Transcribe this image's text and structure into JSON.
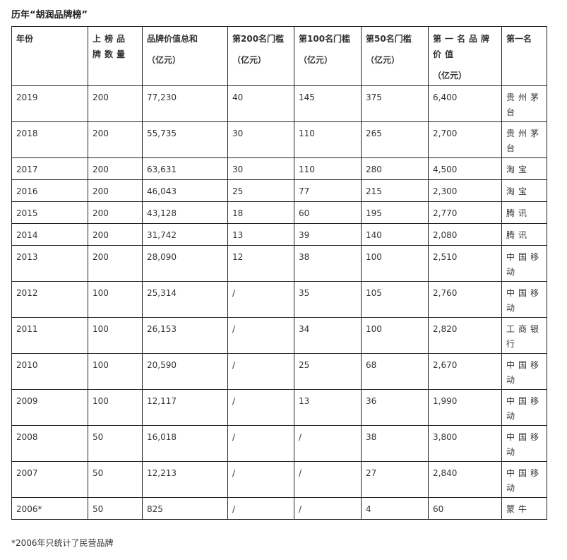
{
  "title": "历年“胡润品牌榜”",
  "headers": [
    {
      "label": "年份",
      "unit": ""
    },
    {
      "label": "上榜品牌数量",
      "unit": ""
    },
    {
      "label": "品牌价值总和",
      "unit": "（亿元）"
    },
    {
      "label": "第200名门槛",
      "unit": "（亿元）"
    },
    {
      "label": "第100名门槛",
      "unit": "（亿元）"
    },
    {
      "label": "第50名门槛",
      "unit": "（亿元）"
    },
    {
      "label": "第一名品牌价值",
      "unit": "（亿元）"
    },
    {
      "label": "第一名",
      "unit": ""
    }
  ],
  "rows": [
    [
      "2019",
      "200",
      "77,230",
      "40",
      "145",
      "375",
      "6,400",
      "贵州茅台"
    ],
    [
      "2018",
      "200",
      "55,735",
      "30",
      "110",
      "265",
      "2,700",
      "贵州茅台"
    ],
    [
      "2017",
      "200",
      "63,631",
      "30",
      "110",
      "280",
      "4,500",
      "淘宝"
    ],
    [
      "2016",
      "200",
      "46,043",
      "25",
      "77",
      "215",
      "2,300",
      "淘宝"
    ],
    [
      "2015",
      "200",
      "43,128",
      "18",
      "60",
      "195",
      "2,770",
      "腾讯"
    ],
    [
      "2014",
      "200",
      "31,742",
      "13",
      "39",
      "140",
      "2,080",
      "腾讯"
    ],
    [
      "2013",
      "200",
      "28,090",
      "12",
      "38",
      "100",
      "2,510",
      "中国移动"
    ],
    [
      "2012",
      "100",
      "25,314",
      "/",
      "35",
      "105",
      "2,760",
      "中国移动"
    ],
    [
      "2011",
      "100",
      "26,153",
      "/",
      "34",
      "100",
      "2,820",
      "工商银行"
    ],
    [
      "2010",
      "100",
      "20,590",
      "/",
      "25",
      "68",
      "2,670",
      "中国移动"
    ],
    [
      "2009",
      "100",
      "12,117",
      "/",
      "13",
      "36",
      "1,990",
      "中国移动"
    ],
    [
      "2008",
      "50",
      "16,018",
      "/",
      "/",
      "38",
      "3,800",
      "中国移动"
    ],
    [
      "2007",
      "50",
      "12,213",
      "/",
      "/",
      "27",
      "2,840",
      "中国移动"
    ],
    [
      "2006*",
      "50",
      "825",
      "/",
      "/",
      "4",
      "60",
      "蒙牛"
    ]
  ],
  "footnote": "*2006年只统计了民营品牌"
}
